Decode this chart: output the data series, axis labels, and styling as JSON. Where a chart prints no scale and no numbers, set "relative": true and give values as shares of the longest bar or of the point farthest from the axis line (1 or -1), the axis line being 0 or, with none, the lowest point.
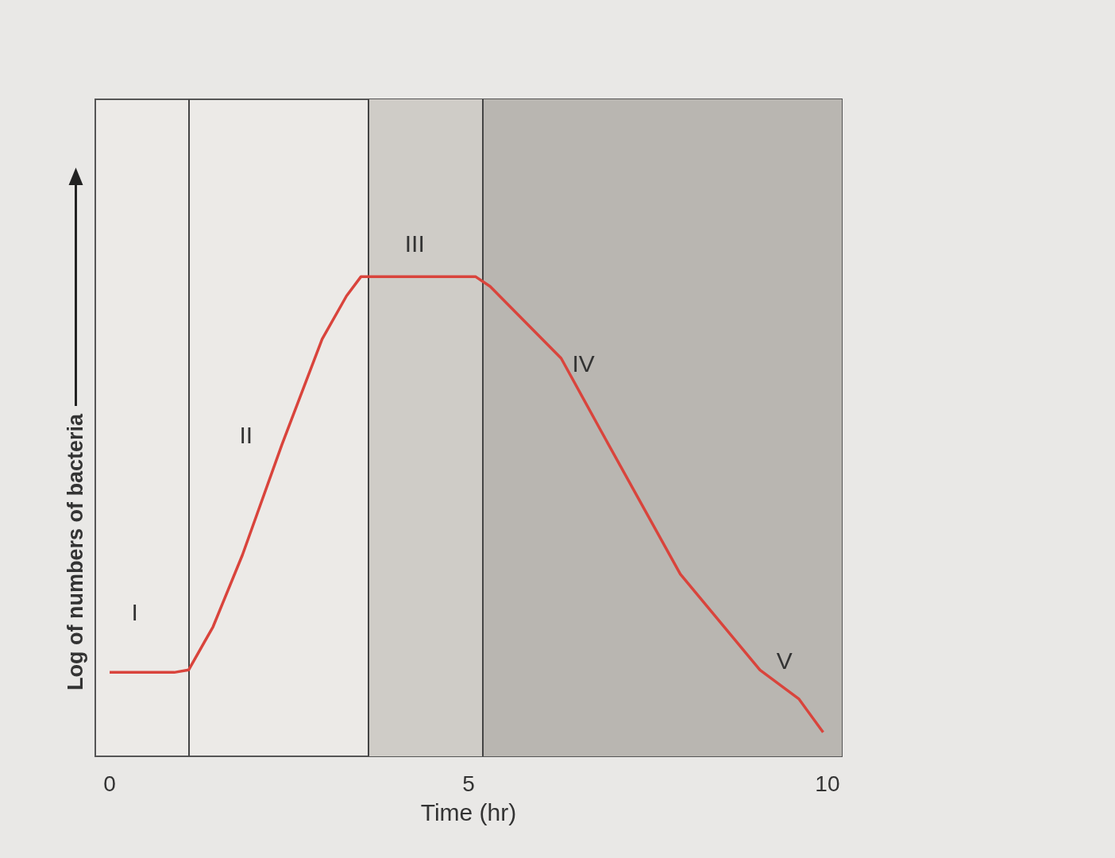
{
  "chart_data": {
    "type": "line",
    "relative": true,
    "xlabel": "Time (hr)",
    "ylabel": "Log of numbers of bacteria",
    "x": [
      0,
      0.9,
      1.1,
      1.44,
      1.85,
      2.4,
      2.96,
      3.3,
      3.5,
      5.1,
      5.3,
      6.29,
      6.84,
      7.95,
      9.06,
      9.6,
      9.94
    ],
    "values": [
      0.175,
      0.175,
      0.18,
      0.27,
      0.42,
      0.65,
      0.87,
      0.96,
      1,
      1,
      0.98,
      0.83,
      0.68,
      0.38,
      0.18,
      0.12,
      0.05
    ],
    "color": "#d9443c",
    "marker": "none",
    "line_style": "solid",
    "grid": false,
    "xlim": [
      -0.2,
      10.2
    ],
    "xticks": [
      0,
      5,
      10
    ],
    "bands": [
      {
        "axis": "x",
        "from": 3.6,
        "to": 5.2,
        "color": "#cfccc7"
      },
      {
        "axis": "x",
        "from": 5.2,
        "to": 10.2,
        "color": "#b9b6b1"
      }
    ],
    "ref_lines": [
      {
        "axis": "x",
        "value": 1.1,
        "color": "#444444"
      },
      {
        "axis": "x",
        "value": 3.6,
        "color": "#444444"
      },
      {
        "axis": "x",
        "value": 5.2,
        "color": "#444444"
      }
    ],
    "annotations": [
      "I",
      "II",
      "III",
      "IV",
      "V"
    ]
  }
}
